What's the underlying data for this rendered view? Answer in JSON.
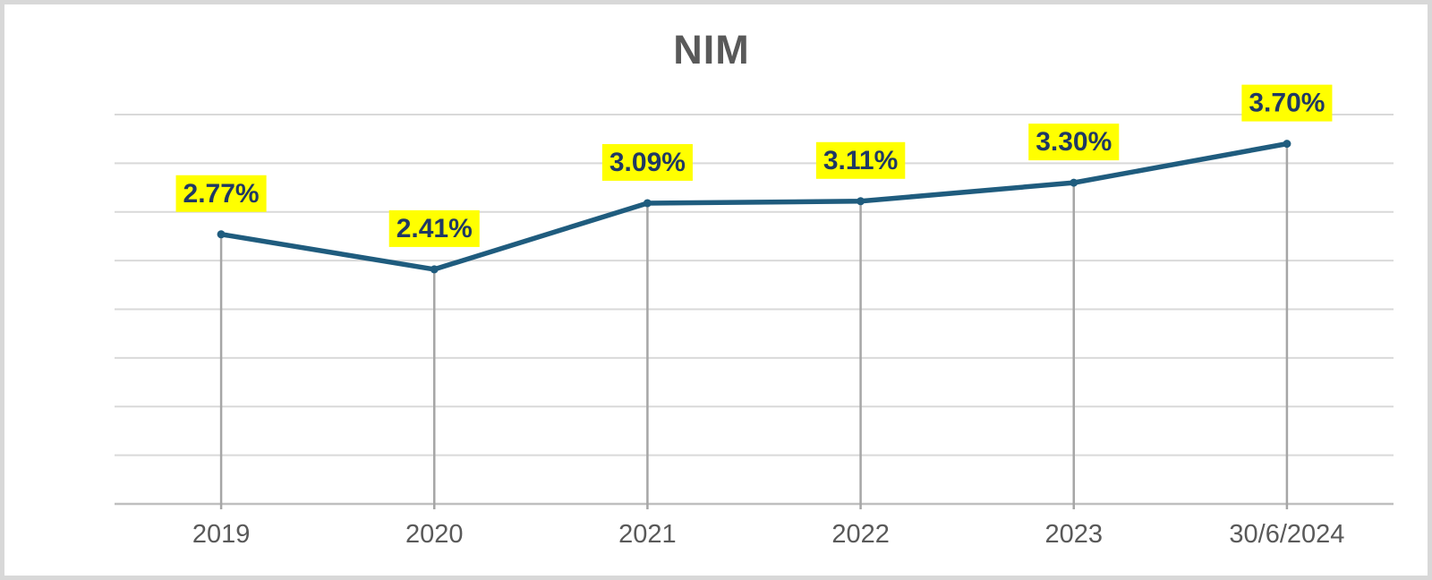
{
  "chart_data": {
    "type": "line",
    "title": "NIM",
    "categories": [
      "2019",
      "2020",
      "2021",
      "2022",
      "2023",
      "30/6/2024"
    ],
    "series": [
      {
        "name": "NIM",
        "values": [
          2.77,
          2.41,
          3.09,
          3.11,
          3.3,
          3.7
        ],
        "data_labels": [
          "2.77%",
          "2.41%",
          "3.09%",
          "3.11%",
          "3.30%",
          "3.70%"
        ]
      }
    ],
    "xlabel": "",
    "ylabel": "",
    "ylim": [
      0,
      4.0
    ],
    "gridline_step": 0.5,
    "grid": "horizontal",
    "y_axis_tick_labels": "hidden",
    "legend_position": "none",
    "drop_lines": true,
    "colors": {
      "line": "#1f5c7e",
      "marker": "#1f5c7e",
      "label_bg": "#ffff00",
      "label_text": "#1f3864",
      "title_text": "#595959",
      "axis_text": "#595959",
      "gridline": "#d9d9d9",
      "axis_line": "#bfbfbf",
      "drop_line": "#a6a6a6",
      "frame_border": "#d8d8d8",
      "background": "#ffffff"
    }
  }
}
